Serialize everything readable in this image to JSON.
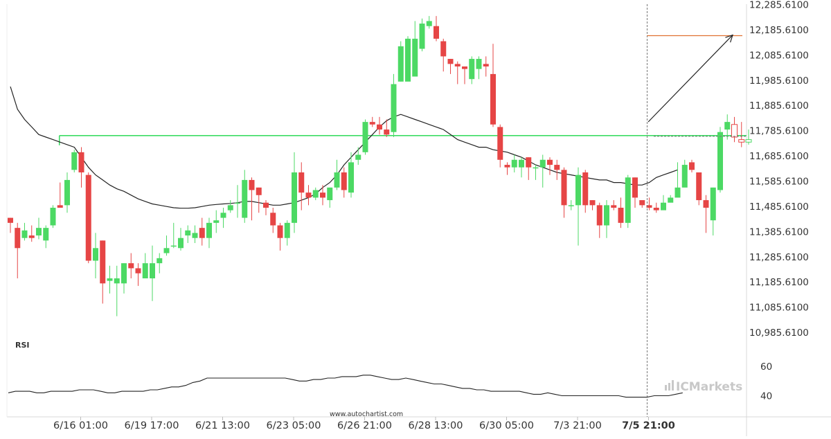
{
  "chart_data": {
    "type": "candlestick",
    "y_axis": {
      "ticks": [
        "12,285.6100",
        "12,185.6100",
        "12,085.6100",
        "11,985.6100",
        "11,885.6100",
        "11,785.6100",
        "11,685.6100",
        "11,585.6100",
        "11,485.6100",
        "11,385.6100",
        "11,285.6100",
        "11,185.6100",
        "11,085.6100",
        "10,985.6100"
      ],
      "range": [
        10940,
        12305
      ]
    },
    "x_axis": {
      "labels": [
        {
          "text": "6/16 01:00",
          "index": 10,
          "bold": false
        },
        {
          "text": "6/19 17:00",
          "index": 20,
          "bold": false
        },
        {
          "text": "6/21 13:00",
          "index": 30,
          "bold": false
        },
        {
          "text": "6/23 05:00",
          "index": 40,
          "bold": false
        },
        {
          "text": "6/26 21:00",
          "index": 50,
          "bold": false
        },
        {
          "text": "6/28 13:00",
          "index": 60,
          "bold": false
        },
        {
          "text": "6/30 05:00",
          "index": 70,
          "bold": false
        },
        {
          "text": "7/3 21:00",
          "index": 80,
          "bold": false
        },
        {
          "text": "7/5 21:00",
          "index": 90,
          "bold": true
        }
      ]
    },
    "colors": {
      "up": "#4cd964",
      "down": "#e64545",
      "ma": "#222222",
      "support": "#3cdc64",
      "target": "#e07030",
      "arrow": "#222222"
    },
    "candles": [
      [
        11440,
        11420,
        11440,
        11380
      ],
      [
        11400,
        11320,
        11420,
        11200
      ],
      [
        11360,
        11390,
        11420,
        11350
      ],
      [
        11370,
        11360,
        11410,
        11345
      ],
      [
        11370,
        11400,
        11440,
        11355
      ],
      [
        11350,
        11400,
        11410,
        11320
      ],
      [
        11410,
        11480,
        11490,
        11400
      ],
      [
        11490,
        11480,
        11580,
        11480
      ],
      [
        11490,
        11590,
        11620,
        11460
      ],
      [
        11630,
        11700,
        11710,
        11620
      ],
      [
        11700,
        11620,
        11720,
        11560
      ],
      [
        11610,
        11270,
        11620,
        11260
      ],
      [
        11270,
        11320,
        11380,
        11200
      ],
      [
        11350,
        11180,
        11350,
        11100
      ],
      [
        11190,
        11200,
        11250,
        11140
      ],
      [
        11180,
        11200,
        11250,
        11050
      ],
      [
        11180,
        11260,
        11260,
        11140
      ],
      [
        11260,
        11240,
        11300,
        11200
      ],
      [
        11240,
        11220,
        11260,
        11170
      ],
      [
        11200,
        11260,
        11300,
        11200
      ],
      [
        11200,
        11260,
        11330,
        11110
      ],
      [
        11260,
        11280,
        11300,
        11220
      ],
      [
        11300,
        11320,
        11370,
        11290
      ],
      [
        11330,
        11330,
        11420,
        11320
      ],
      [
        11320,
        11360,
        11400,
        11310
      ],
      [
        11370,
        11390,
        11410,
        11340
      ],
      [
        11360,
        11380,
        11410,
        11340
      ],
      [
        11400,
        11360,
        11440,
        11330
      ],
      [
        11360,
        11420,
        11440,
        11320
      ],
      [
        11420,
        11430,
        11470,
        11380
      ],
      [
        11440,
        11460,
        11480,
        11400
      ],
      [
        11470,
        11490,
        11510,
        11460
      ],
      [
        11500,
        11500,
        11570,
        11440
      ],
      [
        11440,
        11590,
        11630,
        11420
      ],
      [
        11590,
        11550,
        11600,
        11430
      ],
      [
        11560,
        11530,
        11560,
        11460
      ],
      [
        11500,
        11480,
        11510,
        11450
      ],
      [
        11460,
        11410,
        11480,
        11380
      ],
      [
        11410,
        11360,
        11420,
        11310
      ],
      [
        11360,
        11420,
        11430,
        11330
      ],
      [
        11420,
        11620,
        11700,
        11380
      ],
      [
        11620,
        11540,
        11660,
        11470
      ],
      [
        11540,
        11520,
        11570,
        11490
      ],
      [
        11520,
        11550,
        11560,
        11510
      ],
      [
        11540,
        11520,
        11570,
        11490
      ],
      [
        11510,
        11560,
        11560,
        11480
      ],
      [
        11560,
        11620,
        11670,
        11550
      ],
      [
        11620,
        11550,
        11640,
        11520
      ],
      [
        11540,
        11660,
        11700,
        11520
      ],
      [
        11670,
        11690,
        11720,
        11650
      ],
      [
        11700,
        11820,
        11830,
        11690
      ],
      [
        11820,
        11810,
        11840,
        11800
      ],
      [
        11810,
        11790,
        11840,
        11770
      ],
      [
        11790,
        11770,
        11830,
        11760
      ],
      [
        11780,
        11970,
        12010,
        11760
      ],
      [
        11980,
        12120,
        12140,
        11980
      ],
      [
        11980,
        12150,
        12160,
        12010
      ],
      [
        12000,
        12150,
        12220,
        12130
      ],
      [
        12110,
        12210,
        12230,
        12100
      ],
      [
        12200,
        12220,
        12240,
        12190
      ],
      [
        12200,
        12150,
        12240,
        12140
      ],
      [
        12140,
        12080,
        12150,
        12020
      ],
      [
        12070,
        12050,
        12070,
        12010
      ],
      [
        12050,
        12040,
        12060,
        11970
      ],
      [
        12040,
        12030,
        12040,
        11970
      ],
      [
        11990,
        12070,
        12080,
        11970
      ],
      [
        12030,
        12070,
        12080,
        11990
      ],
      [
        12050,
        12040,
        12080,
        12000
      ],
      [
        12010,
        11810,
        12130,
        11800
      ],
      [
        11800,
        11670,
        11810,
        11640
      ],
      [
        11650,
        11640,
        11660,
        11610
      ],
      [
        11640,
        11670,
        11690,
        11620
      ],
      [
        11640,
        11670,
        11680,
        11600
      ],
      [
        11680,
        11640,
        11680,
        11590
      ],
      [
        11640,
        11640,
        11650,
        11590
      ],
      [
        11640,
        11670,
        11690,
        11560
      ],
      [
        11670,
        11650,
        11680,
        11610
      ],
      [
        11650,
        11630,
        11670,
        11590
      ],
      [
        11630,
        11490,
        11640,
        11440
      ],
      [
        11490,
        11490,
        11510,
        11470
      ],
      [
        11490,
        11610,
        11640,
        11330
      ],
      [
        11620,
        11490,
        11630,
        11460
      ],
      [
        11510,
        11490,
        11510,
        11470
      ],
      [
        11490,
        11410,
        11500,
        11360
      ],
      [
        11410,
        11490,
        11510,
        11360
      ],
      [
        11490,
        11480,
        11510,
        11470
      ],
      [
        11480,
        11420,
        11520,
        11400
      ],
      [
        11420,
        11600,
        11610,
        11400
      ],
      [
        11600,
        11520,
        11600,
        11480
      ],
      [
        11510,
        11490,
        11510,
        11480
      ],
      [
        11490,
        11480,
        11520,
        11470
      ],
      [
        11480,
        11470,
        11500,
        11460
      ],
      [
        11470,
        11500,
        11530,
        11490
      ],
      [
        11500,
        11520,
        11530,
        11510
      ],
      [
        11520,
        11560,
        11660,
        11540
      ],
      [
        11560,
        11650,
        11670,
        11620
      ],
      [
        11660,
        11630,
        11670,
        11620
      ],
      [
        11620,
        11510,
        11620,
        11490
      ],
      [
        11510,
        11480,
        11530,
        11380
      ],
      [
        11430,
        11560,
        11560,
        11370
      ],
      [
        11550,
        11780,
        11800,
        11540
      ],
      [
        11790,
        11820,
        11850,
        11750
      ],
      [
        11810,
        11760,
        11840,
        11740
      ],
      [
        11750,
        11740,
        11820,
        11720
      ],
      [
        11740,
        11750,
        11790,
        11730
      ]
    ],
    "moving_average": [
      11960,
      11870,
      11830,
      11800,
      11770,
      11760,
      11750,
      11740,
      11730,
      11720,
      11680,
      11640,
      11610,
      11590,
      11570,
      11555,
      11545,
      11530,
      11515,
      11505,
      11495,
      11490,
      11485,
      11480,
      11478,
      11478,
      11480,
      11485,
      11490,
      11493,
      11495,
      11497,
      11500,
      11505,
      11505,
      11500,
      11495,
      11490,
      11490,
      11495,
      11500,
      11510,
      11520,
      11535,
      11560,
      11580,
      11610,
      11650,
      11680,
      11710,
      11740,
      11770,
      11800,
      11825,
      11840,
      11850,
      11840,
      11830,
      11820,
      11810,
      11800,
      11790,
      11770,
      11750,
      11740,
      11730,
      11720,
      11720,
      11710,
      11705,
      11700,
      11690,
      11680,
      11665,
      11650,
      11640,
      11630,
      11620,
      11615,
      11610,
      11605,
      11600,
      11595,
      11590,
      11590,
      11580,
      11580,
      11575,
      11570,
      11570,
      11580,
      11600,
      11610,
      11620,
      11630
    ],
    "support_level": 11766,
    "target_level": 12162,
    "current_level": 11763,
    "rsi": {
      "label": "RSI",
      "ticks": [
        "60",
        "40"
      ],
      "values": [
        42,
        43,
        43,
        43,
        42,
        42,
        43,
        43,
        43,
        43,
        44,
        44,
        44,
        43,
        42,
        42,
        43,
        43,
        43,
        43,
        44,
        44,
        45,
        46,
        46,
        47,
        49,
        50,
        52,
        52,
        52,
        52,
        52,
        52,
        52,
        52,
        52,
        52,
        52,
        52,
        51,
        50,
        50,
        51,
        51,
        52,
        52,
        53,
        53,
        53,
        54,
        54,
        53,
        52,
        51,
        51,
        52,
        51,
        50,
        49,
        48,
        48,
        47,
        46,
        45,
        45,
        44,
        44,
        43,
        43,
        43,
        43,
        43,
        42,
        41,
        41,
        42,
        41,
        40,
        40,
        40,
        40,
        40,
        40,
        40,
        40,
        40,
        39,
        39,
        39,
        39,
        40,
        40,
        40,
        41,
        42
      ]
    }
  },
  "watermark": "www.autochartist.com",
  "logo": {
    "text": "ICMarkets"
  }
}
